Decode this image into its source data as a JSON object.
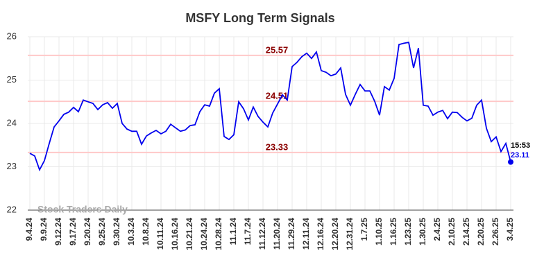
{
  "chart_data": {
    "type": "line",
    "title": "MSFY Long Term Signals",
    "categories": [
      "9.4.24",
      null,
      null,
      "9.9.24",
      null,
      null,
      "9.12.24",
      null,
      null,
      "9.17.24",
      null,
      null,
      "9.20.24",
      null,
      null,
      "9.25.24",
      null,
      null,
      "9.30.24",
      null,
      null,
      "10.3.24",
      null,
      null,
      "10.8.24",
      null,
      null,
      "10.11.24",
      null,
      null,
      "10.16.24",
      null,
      null,
      "10.21.24",
      null,
      null,
      "10.24.24",
      null,
      null,
      "10.28.24",
      null,
      null,
      "11.1.24",
      null,
      null,
      "11.7.24",
      null,
      null,
      "11.12.24",
      null,
      null,
      "11.20.24",
      null,
      null,
      "11.29.24",
      null,
      null,
      "12.11.24",
      null,
      null,
      "12.16.24",
      null,
      null,
      "12.20.24",
      null,
      null,
      "12.31.24",
      null,
      null,
      "1.7.25",
      null,
      null,
      "1.10.25",
      null,
      null,
      "1.16.25",
      null,
      null,
      "1.23.25",
      null,
      null,
      "1.30.25",
      null,
      null,
      "2.4.25",
      null,
      null,
      "2.10.25",
      null,
      null,
      "2.14.25",
      null,
      null,
      "2.20.25",
      null,
      null,
      "2.26.25",
      null,
      null,
      "3.4.25"
    ],
    "values": [
      23.31,
      23.25,
      22.93,
      23.14,
      23.54,
      23.92,
      24.06,
      24.21,
      24.26,
      24.37,
      24.27,
      24.54,
      24.5,
      24.46,
      24.32,
      24.43,
      24.48,
      24.35,
      24.46,
      24.0,
      23.87,
      23.82,
      23.82,
      23.52,
      23.71,
      23.78,
      23.84,
      23.76,
      23.82,
      23.98,
      23.9,
      23.82,
      23.85,
      23.95,
      23.97,
      24.27,
      24.43,
      24.4,
      24.7,
      24.8,
      23.7,
      23.63,
      23.74,
      24.5,
      24.34,
      24.08,
      24.38,
      24.16,
      24.03,
      23.92,
      24.24,
      24.45,
      24.66,
      24.54,
      25.31,
      25.41,
      25.54,
      25.62,
      25.5,
      25.65,
      25.22,
      25.18,
      25.1,
      25.14,
      25.28,
      24.67,
      24.42,
      24.67,
      24.9,
      24.75,
      24.75,
      24.51,
      24.19,
      24.85,
      24.77,
      25.04,
      25.82,
      25.85,
      25.87,
      25.28,
      25.74,
      24.42,
      24.4,
      24.19,
      24.26,
      24.3,
      24.11,
      24.26,
      24.25,
      24.14,
      24.06,
      24.12,
      24.42,
      24.54,
      23.89,
      23.58,
      23.69,
      23.35,
      23.54,
      23.11
    ],
    "color": "#0000ee",
    "ylim": [
      22,
      26
    ],
    "yticks": [
      22,
      23,
      24,
      25,
      26
    ],
    "grid": true,
    "hlines": [
      25.57,
      24.51,
      23.33
    ],
    "hline_color": "#ffc8c8",
    "hline_label_color": "#8b0000",
    "last_time": "15:53",
    "watermark": "Stock Traders Daily"
  }
}
